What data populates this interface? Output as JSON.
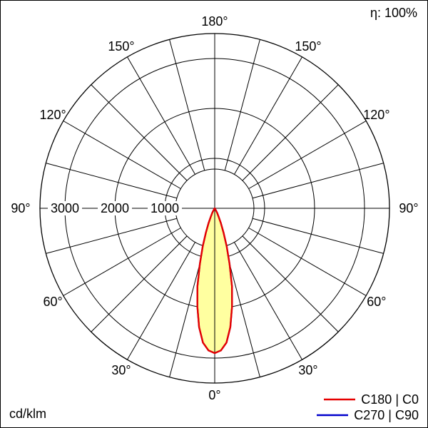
{
  "header": {
    "efficiency": "η: 100%"
  },
  "footer": {
    "unit": "cd/klm"
  },
  "legend": [
    {
      "label": "C180 | C0",
      "color": "#e60000"
    },
    {
      "label": "C270 | C90",
      "color": "#0000cc"
    }
  ],
  "chart_data": {
    "type": "line",
    "layout": "polar",
    "title": "",
    "unit": "cd/klm",
    "efficiency": "η: 100%",
    "grid": true,
    "legend_position": "bottom-right",
    "angle_ticks_deg": [
      0,
      30,
      60,
      90,
      120,
      150,
      180
    ],
    "angle_tick_labels": [
      "0°",
      "30°",
      "60°",
      "90°",
      "120°",
      "150°",
      "180°"
    ],
    "spoke_step_deg": 15,
    "radial_ticks": [
      1000,
      2000,
      3000
    ],
    "radial_tick_labels": [
      "1000",
      "2000",
      "3000"
    ],
    "r_max": 3500,
    "series": [
      {
        "name": "C180 | C0",
        "color": "#e60000",
        "fill": "#ffffa0",
        "points_gamma_cd": [
          [
            0,
            2900
          ],
          [
            2.5,
            2850
          ],
          [
            5,
            2700
          ],
          [
            7.5,
            2400
          ],
          [
            10,
            2000
          ],
          [
            12.5,
            1600
          ],
          [
            15,
            1150
          ],
          [
            17.5,
            800
          ],
          [
            20,
            520
          ],
          [
            22.5,
            320
          ],
          [
            25,
            190
          ],
          [
            27.5,
            110
          ],
          [
            30,
            60
          ],
          [
            32.5,
            30
          ],
          [
            35,
            15
          ],
          [
            37.5,
            6
          ],
          [
            40,
            0
          ],
          [
            50,
            0
          ],
          [
            60,
            0
          ],
          [
            70,
            0
          ],
          [
            80,
            0
          ],
          [
            90,
            0
          ]
        ]
      },
      {
        "name": "C270 | C90",
        "color": "#0000cc",
        "fill": "none",
        "points_gamma_cd": [
          [
            0,
            2900
          ],
          [
            2.5,
            2850
          ],
          [
            5,
            2700
          ],
          [
            7.5,
            2400
          ],
          [
            10,
            2000
          ],
          [
            12.5,
            1600
          ],
          [
            15,
            1150
          ],
          [
            17.5,
            800
          ],
          [
            20,
            520
          ],
          [
            22.5,
            320
          ],
          [
            25,
            190
          ],
          [
            27.5,
            110
          ],
          [
            30,
            60
          ],
          [
            32.5,
            30
          ],
          [
            35,
            15
          ],
          [
            37.5,
            6
          ],
          [
            40,
            0
          ],
          [
            50,
            0
          ],
          [
            60,
            0
          ],
          [
            70,
            0
          ],
          [
            80,
            0
          ],
          [
            90,
            0
          ]
        ]
      }
    ]
  }
}
